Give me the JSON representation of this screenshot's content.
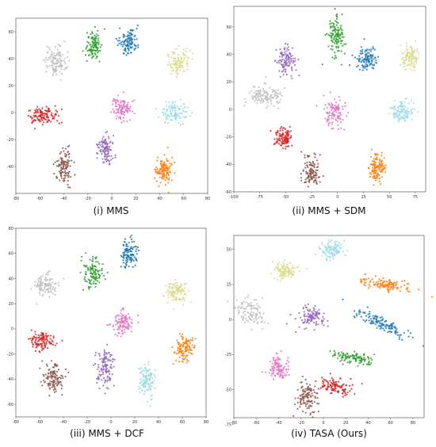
{
  "colors": {
    "blue": "#1f77b4",
    "orange": "#ff7f0e",
    "green": "#2ca02c",
    "red": "#d62728",
    "purple": "#9467bd",
    "brown": "#8c564b",
    "pink": "#e377c2",
    "gray": "#bfbfbf",
    "olive": "#dbdb8d",
    "cyan": "#9edae5"
  },
  "chart_data": [
    {
      "type": "scatter",
      "caption": "(i) MMS",
      "xlim": [
        -80,
        80
      ],
      "ylim": [
        -60,
        70
      ],
      "xticks": [
        -80,
        -60,
        -40,
        -20,
        0,
        20,
        40,
        60,
        80
      ],
      "yticks": [
        -40,
        -20,
        0,
        20,
        40,
        60
      ],
      "grid": false,
      "series": [
        {
          "color": "gray",
          "center": [
            -47,
            38
          ],
          "spread": [
            8,
            10
          ],
          "n": 120
        },
        {
          "color": "green",
          "center": [
            -15,
            50
          ],
          "spread": [
            6,
            9
          ],
          "n": 110
        },
        {
          "color": "blue",
          "center": [
            14,
            53
          ],
          "spread": [
            7,
            9
          ],
          "n": 110
        },
        {
          "color": "olive",
          "center": [
            55,
            38
          ],
          "spread": [
            9,
            8
          ],
          "n": 110
        },
        {
          "color": "red",
          "center": [
            -57,
            -2
          ],
          "spread": [
            11,
            6
          ],
          "n": 120
        },
        {
          "color": "pink",
          "center": [
            8,
            3
          ],
          "spread": [
            8,
            8
          ],
          "n": 110
        },
        {
          "color": "cyan",
          "center": [
            52,
            0
          ],
          "spread": [
            10,
            7
          ],
          "n": 110
        },
        {
          "color": "purple",
          "center": [
            -5,
            -28
          ],
          "spread": [
            6,
            10
          ],
          "n": 110
        },
        {
          "color": "brown",
          "center": [
            -40,
            -40
          ],
          "spread": [
            6,
            12
          ],
          "n": 120
        },
        {
          "color": "orange",
          "center": [
            43,
            -43
          ],
          "spread": [
            7,
            9
          ],
          "n": 120
        }
      ]
    },
    {
      "type": "scatter",
      "caption": "(ii) MMS + SDM",
      "xlim": [
        -100,
        85
      ],
      "ylim": [
        -60,
        75
      ],
      "xticks": [
        -100,
        -75,
        -50,
        -25,
        0,
        25,
        50,
        75
      ],
      "yticks": [
        -60,
        -40,
        -20,
        0,
        20,
        40,
        60
      ],
      "grid": false,
      "series": [
        {
          "color": "green",
          "center": [
            -2,
            52
          ],
          "spread": [
            7,
            13
          ],
          "n": 120
        },
        {
          "color": "purple",
          "center": [
            -50,
            35
          ],
          "spread": [
            8,
            9
          ],
          "n": 110
        },
        {
          "color": "blue",
          "center": [
            28,
            37
          ],
          "spread": [
            9,
            7
          ],
          "n": 110
        },
        {
          "color": "olive",
          "center": [
            70,
            38
          ],
          "spread": [
            8,
            8
          ],
          "n": 110
        },
        {
          "color": "gray",
          "center": [
            -70,
            10
          ],
          "spread": [
            17,
            7
          ],
          "n": 130
        },
        {
          "color": "pink",
          "center": [
            -3,
            -3
          ],
          "spread": [
            9,
            9
          ],
          "n": 110
        },
        {
          "color": "cyan",
          "center": [
            62,
            -2
          ],
          "spread": [
            10,
            7
          ],
          "n": 110
        },
        {
          "color": "red",
          "center": [
            -52,
            -21
          ],
          "spread": [
            8,
            7
          ],
          "n": 110
        },
        {
          "color": "brown",
          "center": [
            -25,
            -45
          ],
          "spread": [
            8,
            10
          ],
          "n": 120
        },
        {
          "color": "orange",
          "center": [
            38,
            -43
          ],
          "spread": [
            7,
            9
          ],
          "n": 120
        }
      ]
    },
    {
      "type": "scatter",
      "caption": "(iii) MMS + DCF",
      "xlim": [
        -80,
        80
      ],
      "ylim": [
        -70,
        80
      ],
      "xticks": [
        -80,
        -60,
        -40,
        -20,
        0,
        20,
        40,
        60,
        80
      ],
      "yticks": [
        -60,
        -40,
        -20,
        0,
        20,
        40,
        60,
        80
      ],
      "grid": false,
      "series": [
        {
          "color": "gray",
          "center": [
            -55,
            35
          ],
          "spread": [
            9,
            8
          ],
          "n": 110
        },
        {
          "color": "green",
          "center": [
            -15,
            45
          ],
          "spread": [
            7,
            10
          ],
          "n": 110
        },
        {
          "color": "blue",
          "center": [
            15,
            60
          ],
          "spread": [
            6,
            10
          ],
          "n": 110
        },
        {
          "color": "olive",
          "center": [
            55,
            30
          ],
          "spread": [
            8,
            8
          ],
          "n": 110
        },
        {
          "color": "red",
          "center": [
            -58,
            -10
          ],
          "spread": [
            10,
            7
          ],
          "n": 120
        },
        {
          "color": "pink",
          "center": [
            10,
            5
          ],
          "spread": [
            8,
            9
          ],
          "n": 110
        },
        {
          "color": "orange",
          "center": [
            62,
            -15
          ],
          "spread": [
            7,
            10
          ],
          "n": 110
        },
        {
          "color": "purple",
          "center": [
            -5,
            -30
          ],
          "spread": [
            7,
            14
          ],
          "n": 120
        },
        {
          "color": "brown",
          "center": [
            -48,
            -40
          ],
          "spread": [
            8,
            10
          ],
          "n": 120
        },
        {
          "color": "cyan",
          "center": [
            30,
            -42
          ],
          "spread": [
            6,
            12
          ],
          "n": 120
        }
      ]
    },
    {
      "type": "scatter",
      "caption": "(iv) TASA (Ours)",
      "xlim": [
        -80,
        90
      ],
      "ylim": [
        -70,
        60
      ],
      "xticks": [
        -80,
        -60,
        -40,
        -20,
        0,
        20,
        40,
        60,
        80
      ],
      "yticks": [
        -75,
        -50,
        -25,
        0,
        25,
        50
      ],
      "grid": false,
      "series": [
        {
          "color": "cyan",
          "center": [
            8,
            50
          ],
          "spread": [
            10,
            6
          ],
          "n": 110
        },
        {
          "color": "olive",
          "center": [
            -35,
            35
          ],
          "spread": [
            11,
            6
          ],
          "n": 110
        },
        {
          "color": "orange",
          "center": [
            55,
            25
          ],
          "spread": [
            22,
            4
          ],
          "n": 120,
          "angle": -0.15
        },
        {
          "color": "gray",
          "center": [
            -65,
            5
          ],
          "spread": [
            12,
            9
          ],
          "n": 110
        },
        {
          "color": "purple",
          "center": [
            -10,
            2
          ],
          "spread": [
            12,
            7
          ],
          "n": 110
        },
        {
          "color": "blue",
          "center": [
            50,
            -2
          ],
          "spread": [
            24,
            4
          ],
          "n": 130,
          "angle": -0.4
        },
        {
          "color": "green",
          "center": [
            25,
            -27
          ],
          "spread": [
            18,
            4
          ],
          "n": 110,
          "angle": -0.1
        },
        {
          "color": "pink",
          "center": [
            -40,
            -35
          ],
          "spread": [
            10,
            9
          ],
          "n": 110
        },
        {
          "color": "red",
          "center": [
            12,
            -48
          ],
          "spread": [
            14,
            5
          ],
          "n": 110,
          "angle": -0.15
        },
        {
          "color": "brown",
          "center": [
            -15,
            -55
          ],
          "spread": [
            8,
            10
          ],
          "n": 120
        }
      ]
    }
  ]
}
